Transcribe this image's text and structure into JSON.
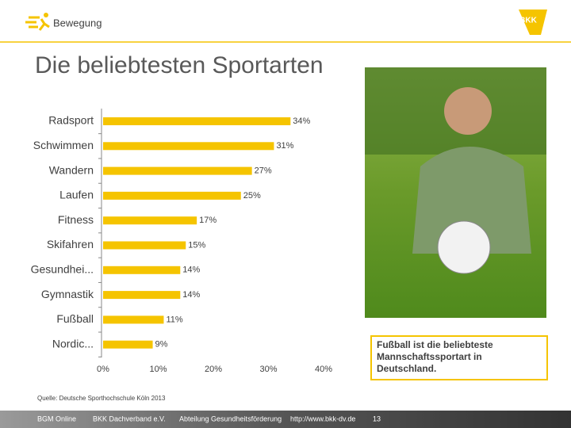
{
  "header": {
    "section": "Bewegung",
    "logo": "BKK"
  },
  "chart_data": {
    "type": "bar",
    "orientation": "horizontal",
    "title": "Die beliebtesten Sportarten",
    "categories": [
      "Radsport",
      "Schwimmen",
      "Wandern",
      "Laufen",
      "Fitness",
      "Skifahren",
      "Gesundhei...",
      "Gymnastik",
      "Fußball",
      "Nordic..."
    ],
    "values": [
      34,
      31,
      27,
      25,
      17,
      15,
      14,
      14,
      11,
      9
    ],
    "value_labels": [
      "34%",
      "31%",
      "27%",
      "25%",
      "17%",
      "15%",
      "14%",
      "14%",
      "11%",
      "9%"
    ],
    "color": "#f5c400",
    "xlim": [
      0,
      40
    ],
    "xticks": [
      {
        "value": 0,
        "label": "0%"
      },
      {
        "value": 10,
        "label": "10%"
      },
      {
        "value": 20,
        "label": "20%"
      },
      {
        "value": 30,
        "label": "30%"
      },
      {
        "value": 40,
        "label": "40%"
      }
    ],
    "annotation": "Fußball ist die beliebteste Mannschaftssportart in Deutschland.",
    "source": "Quelle: Deutsche Sporthochschule Köln 2013"
  },
  "footer": [
    "BGM Online",
    "BKK Dachverband e.V.",
    "Abteilung Gesundheitsförderung",
    "http://www.bkk-dv.de",
    "13"
  ]
}
